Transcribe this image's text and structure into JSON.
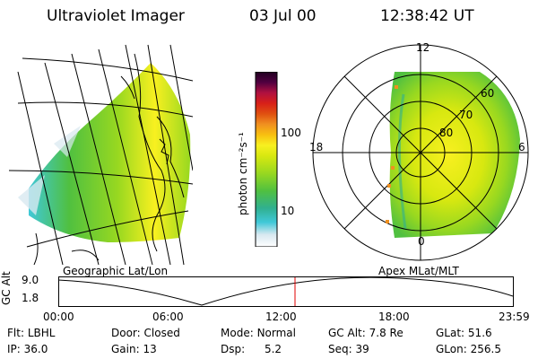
{
  "header": {
    "title": "Ultraviolet Imager",
    "date": "03 Jul 00",
    "time": "12:38:42 UT"
  },
  "left_panel": {
    "label": "Geographic Lat/Lon"
  },
  "right_panel": {
    "label": "Apex MLat/MLT",
    "mlt_labels": [
      "12",
      "18",
      "6",
      "0"
    ],
    "mlat_labels": [
      "60",
      "70",
      "80"
    ]
  },
  "colorbar": {
    "unit": "photon cm⁻²s⁻¹",
    "ticks": [
      "100",
      "10"
    ],
    "colors": [
      "#ffffff",
      "#d8e8f0",
      "#40c8d8",
      "#30b090",
      "#50c040",
      "#98d820",
      "#d8e810",
      "#f8f020",
      "#f8c010",
      "#f09020",
      "#e05010",
      "#d82018",
      "#b01040",
      "#500040",
      "#200020"
    ]
  },
  "timeline": {
    "axis_title": "GC Alt",
    "y_ticks": [
      "9.0",
      "1.8"
    ],
    "x_ticks": [
      "00:00",
      "06:00",
      "12:00",
      "18:00",
      "23:59"
    ],
    "marker_color": "#e00000"
  },
  "footer": {
    "flt_label": "Flt:",
    "flt_value": "LBHL",
    "ip_label": "IP:",
    "ip_value": "36.0",
    "door_label": "Door:",
    "door_value": "Closed",
    "gain_label": "Gain:",
    "gain_value": "13",
    "mode_label": "Mode:",
    "mode_value": "Normal",
    "dsp_label": "Dsp:",
    "dsp_value": "5.2",
    "gcalt_label": "GC Alt:",
    "gcalt_value": "7.8 Re",
    "seq_label": "Seq:",
    "seq_value": "39",
    "glat_label": "GLat:",
    "glat_value": "51.6",
    "glon_label": "GLon:",
    "glon_value": "256.5"
  }
}
